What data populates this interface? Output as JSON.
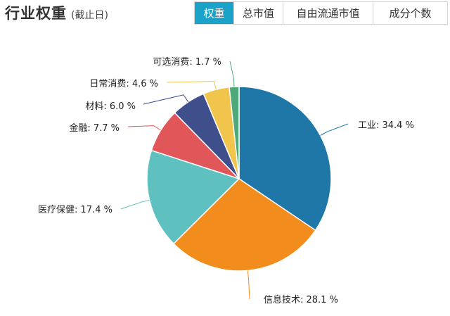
{
  "header": {
    "title": "行业权重",
    "subtitle": "(截止日)",
    "tabs": [
      {
        "label": "权重",
        "active": true
      },
      {
        "label": "总市值",
        "active": false
      },
      {
        "label": "自由流通市值",
        "active": false
      },
      {
        "label": "成分个数",
        "active": false
      }
    ],
    "accent_color": "#1aa2c9"
  },
  "chart_data": {
    "type": "pie",
    "title": "",
    "unit": "%",
    "slices": [
      {
        "name": "工业",
        "value": 34.4,
        "label": "工业: 34.4 %",
        "color": "#1f77a8"
      },
      {
        "name": "信息技术",
        "value": 28.1,
        "label": "信息技术: 28.1 %",
        "color": "#f28c1c"
      },
      {
        "name": "医疗保健",
        "value": 17.4,
        "label": "医疗保健: 17.4 %",
        "color": "#5ec1bf"
      },
      {
        "name": "金融",
        "value": 7.7,
        "label": "金融: 7.7 %",
        "color": "#e15759"
      },
      {
        "name": "材料",
        "value": 6.0,
        "label": "材料: 6.0 %",
        "color": "#3f4f8c"
      },
      {
        "name": "日常消费",
        "value": 4.6,
        "label": "日常消费: 4.6 %",
        "color": "#f1c44b"
      },
      {
        "name": "可选消费",
        "value": 1.7,
        "label": "可选消费: 1.7 %",
        "color": "#4ea87a"
      }
    ]
  }
}
